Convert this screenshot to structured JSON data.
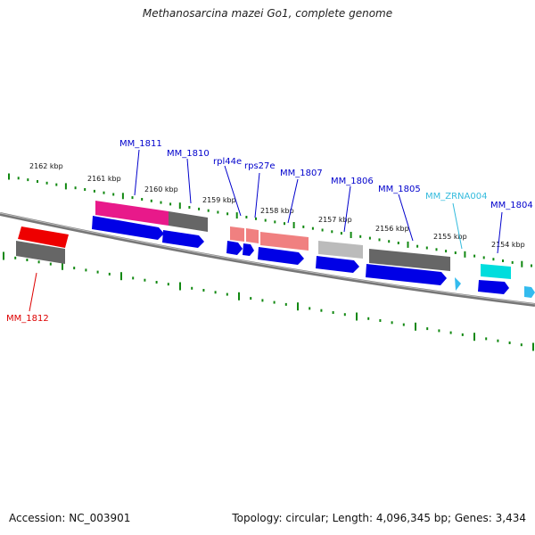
{
  "title": "Methanosarcina mazei Go1, complete genome",
  "footer": {
    "accession": "Accession: NC_003901",
    "summary": "Topology: circular; Length: 4,096,345 bp; Genes: 3,434"
  },
  "scale_labels": [
    "2162 kbp",
    "2161 kbp",
    "2160 kbp",
    "2159 kbp",
    "2158 kbp",
    "2157 kbp",
    "2156 kbp",
    "2155 kbp",
    "2154 kbp"
  ],
  "gene_labels": [
    {
      "name": "MM_1811",
      "color": "#0000cc"
    },
    {
      "name": "MM_1810",
      "color": "#0000cc"
    },
    {
      "name": "rpl44e",
      "color": "#0000cc"
    },
    {
      "name": "rps27e",
      "color": "#0000cc"
    },
    {
      "name": "MM_1807",
      "color": "#0000cc"
    },
    {
      "name": "MM_1806",
      "color": "#0000cc"
    },
    {
      "name": "MM_1805",
      "color": "#0000cc"
    },
    {
      "name": "MM_ZRNA004",
      "color": "#33bbdd"
    },
    {
      "name": "MM_1804",
      "color": "#0000cc"
    },
    {
      "name": "MM_1812",
      "color": "#dd0000"
    }
  ],
  "colors": {
    "cds": "#0000e6",
    "ncrna": "#33bbee",
    "backbone": "#888888",
    "tick": "#118811",
    "gene_gray": "#666666",
    "gene_magenta": "#e8198a",
    "gene_salmon": "#f08080",
    "gene_red": "#ee0000",
    "gene_cyan": "#00dddd",
    "gene_lightgray": "#bbbbbb"
  }
}
